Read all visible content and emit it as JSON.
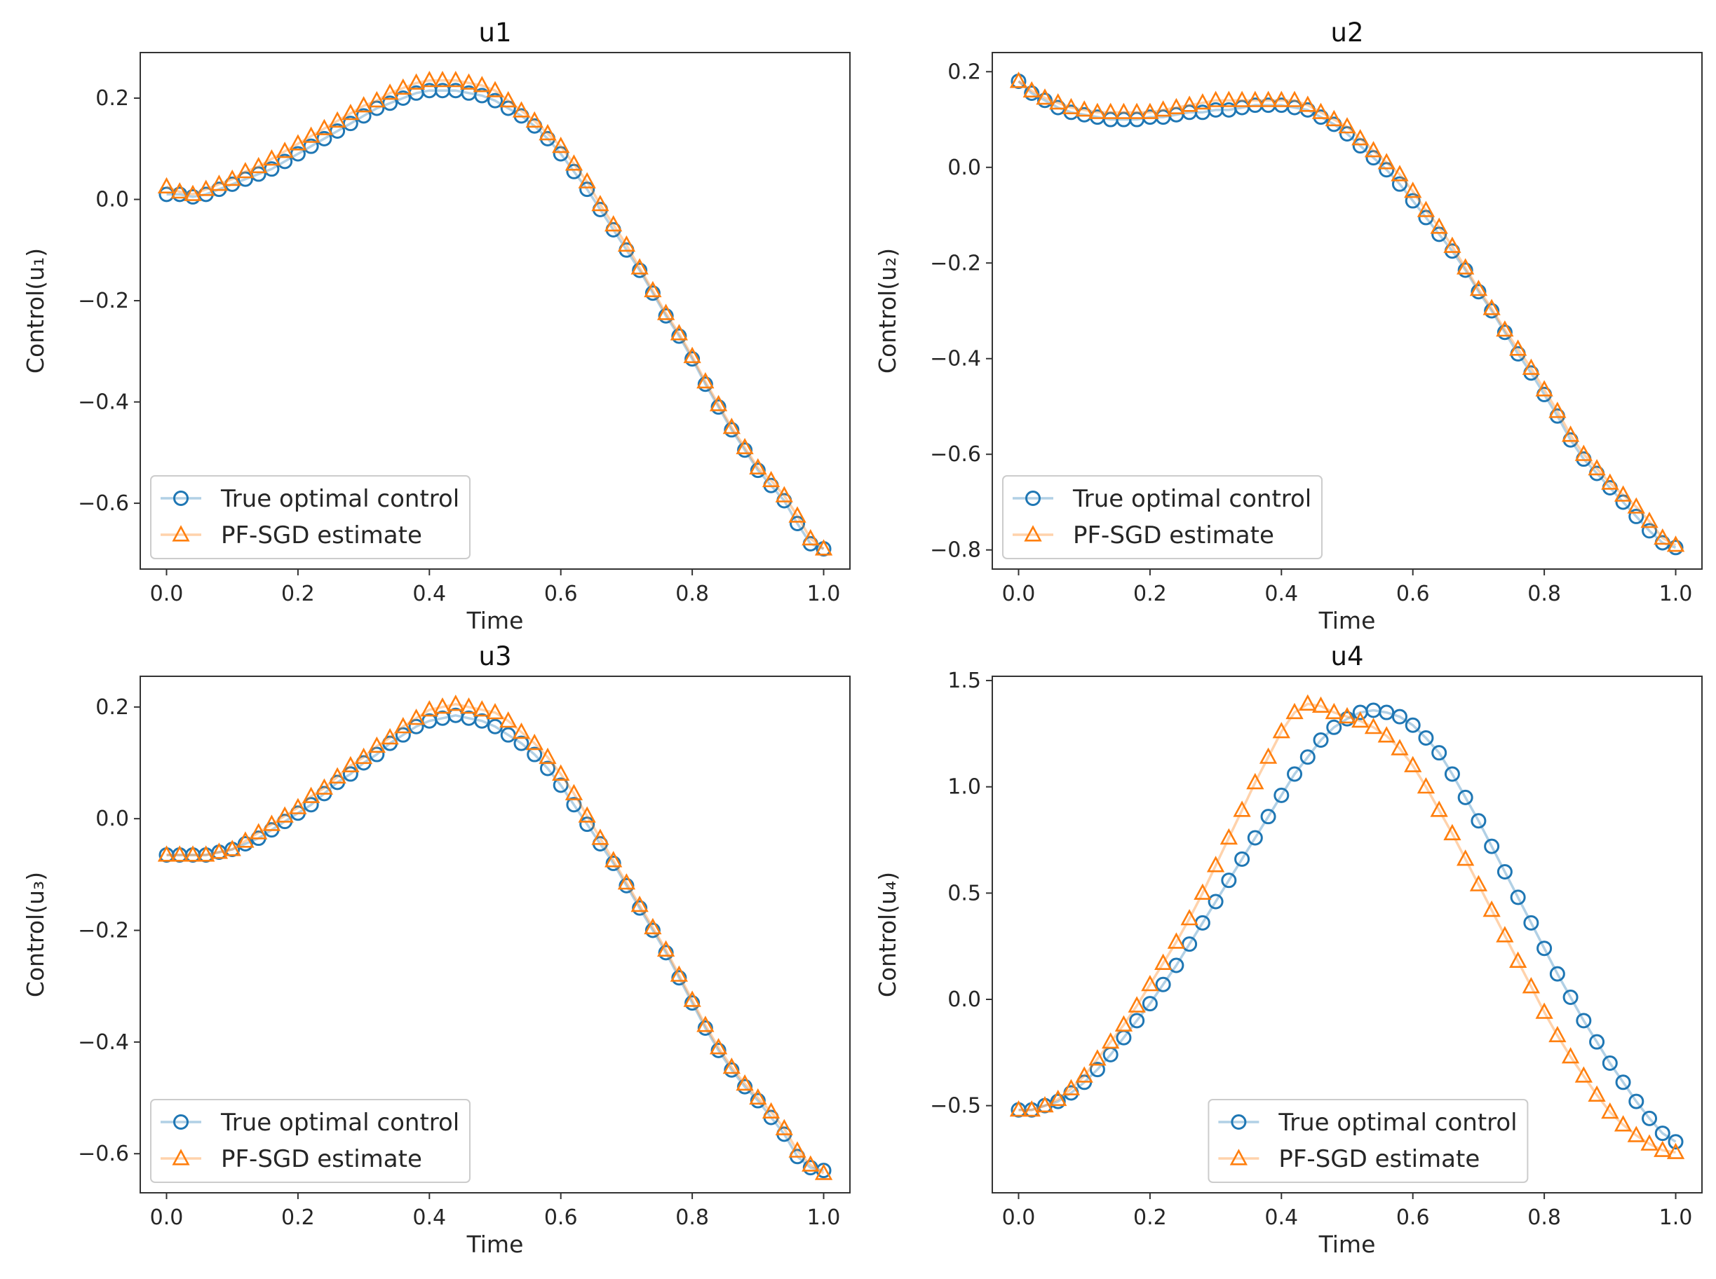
{
  "figure": {
    "background": "#ffffff"
  },
  "chart_data": [
    {
      "type": "line",
      "title": "u1",
      "xlabel": "Time",
      "ylabel": "Control(u₁)",
      "xlim": [
        -0.04,
        1.04
      ],
      "ylim": [
        -0.73,
        0.29
      ],
      "xticks": [
        0.0,
        0.2,
        0.4,
        0.6,
        0.8,
        1.0
      ],
      "xtick_labels": [
        "0.0",
        "0.2",
        "0.4",
        "0.6",
        "0.8",
        "1.0"
      ],
      "yticks": [
        -0.6,
        -0.4,
        -0.2,
        0.0,
        0.2
      ],
      "ytick_labels": [
        "−0.6",
        "−0.4",
        "−0.2",
        "0.0",
        "0.2"
      ],
      "legend_position": "lower-left",
      "x": [
        0.0,
        0.02,
        0.04,
        0.06,
        0.08,
        0.1,
        0.12,
        0.14,
        0.16,
        0.18,
        0.2,
        0.22,
        0.24,
        0.26,
        0.28,
        0.3,
        0.32,
        0.34,
        0.36,
        0.38,
        0.4,
        0.42,
        0.44,
        0.46,
        0.48,
        0.5,
        0.52,
        0.54,
        0.56,
        0.58,
        0.6,
        0.62,
        0.64,
        0.66,
        0.68,
        0.7,
        0.72,
        0.74,
        0.76,
        0.78,
        0.8,
        0.82,
        0.84,
        0.86,
        0.88,
        0.9,
        0.92,
        0.94,
        0.96,
        0.98,
        1.0
      ],
      "series": [
        {
          "name": "True optimal control",
          "marker": "circle",
          "color": "#1f77b4",
          "values": [
            0.01,
            0.01,
            0.005,
            0.01,
            0.02,
            0.03,
            0.04,
            0.05,
            0.06,
            0.075,
            0.09,
            0.105,
            0.12,
            0.135,
            0.15,
            0.165,
            0.18,
            0.19,
            0.2,
            0.21,
            0.215,
            0.215,
            0.215,
            0.21,
            0.205,
            0.195,
            0.18,
            0.165,
            0.145,
            0.12,
            0.09,
            0.055,
            0.02,
            -0.02,
            -0.06,
            -0.1,
            -0.14,
            -0.185,
            -0.23,
            -0.27,
            -0.315,
            -0.365,
            -0.41,
            -0.455,
            -0.495,
            -0.535,
            -0.565,
            -0.595,
            -0.64,
            -0.68,
            -0.69
          ]
        },
        {
          "name": "PF-SGD estimate",
          "marker": "triangle",
          "color": "#ff7f0e",
          "values": [
            0.025,
            0.015,
            0.01,
            0.02,
            0.03,
            0.04,
            0.055,
            0.065,
            0.08,
            0.095,
            0.11,
            0.125,
            0.14,
            0.155,
            0.17,
            0.185,
            0.195,
            0.21,
            0.22,
            0.23,
            0.235,
            0.235,
            0.235,
            0.23,
            0.225,
            0.215,
            0.195,
            0.175,
            0.155,
            0.13,
            0.105,
            0.07,
            0.035,
            -0.01,
            -0.05,
            -0.09,
            -0.135,
            -0.18,
            -0.225,
            -0.265,
            -0.31,
            -0.36,
            -0.405,
            -0.45,
            -0.49,
            -0.53,
            -0.555,
            -0.585,
            -0.625,
            -0.67,
            -0.69
          ]
        }
      ]
    },
    {
      "type": "line",
      "title": "u2",
      "xlabel": "Time",
      "ylabel": "Control(u₂)",
      "xlim": [
        -0.04,
        1.04
      ],
      "ylim": [
        -0.84,
        0.24
      ],
      "xticks": [
        0.0,
        0.2,
        0.4,
        0.6,
        0.8,
        1.0
      ],
      "xtick_labels": [
        "0.0",
        "0.2",
        "0.4",
        "0.6",
        "0.8",
        "1.0"
      ],
      "yticks": [
        -0.8,
        -0.6,
        -0.4,
        -0.2,
        0.0,
        0.2
      ],
      "ytick_labels": [
        "−0.8",
        "−0.6",
        "−0.4",
        "−0.2",
        "0.0",
        "0.2"
      ],
      "legend_position": "lower-left",
      "x": [
        0.0,
        0.02,
        0.04,
        0.06,
        0.08,
        0.1,
        0.12,
        0.14,
        0.16,
        0.18,
        0.2,
        0.22,
        0.24,
        0.26,
        0.28,
        0.3,
        0.32,
        0.34,
        0.36,
        0.38,
        0.4,
        0.42,
        0.44,
        0.46,
        0.48,
        0.5,
        0.52,
        0.54,
        0.56,
        0.58,
        0.6,
        0.62,
        0.64,
        0.66,
        0.68,
        0.7,
        0.72,
        0.74,
        0.76,
        0.78,
        0.8,
        0.82,
        0.84,
        0.86,
        0.88,
        0.9,
        0.92,
        0.94,
        0.96,
        0.98,
        1.0
      ],
      "series": [
        {
          "name": "True optimal control",
          "marker": "circle",
          "color": "#1f77b4",
          "values": [
            0.18,
            0.155,
            0.14,
            0.125,
            0.115,
            0.11,
            0.105,
            0.1,
            0.1,
            0.1,
            0.105,
            0.105,
            0.11,
            0.115,
            0.115,
            0.12,
            0.12,
            0.125,
            0.13,
            0.13,
            0.13,
            0.125,
            0.12,
            0.105,
            0.09,
            0.07,
            0.045,
            0.02,
            -0.005,
            -0.035,
            -0.07,
            -0.105,
            -0.14,
            -0.175,
            -0.215,
            -0.26,
            -0.3,
            -0.345,
            -0.39,
            -0.43,
            -0.475,
            -0.52,
            -0.57,
            -0.61,
            -0.64,
            -0.67,
            -0.7,
            -0.73,
            -0.76,
            -0.785,
            -0.795
          ]
        },
        {
          "name": "PF-SGD estimate",
          "marker": "triangle",
          "color": "#ff7f0e",
          "values": [
            0.18,
            0.16,
            0.145,
            0.135,
            0.125,
            0.12,
            0.115,
            0.115,
            0.115,
            0.115,
            0.115,
            0.12,
            0.125,
            0.13,
            0.135,
            0.14,
            0.14,
            0.14,
            0.14,
            0.14,
            0.14,
            0.14,
            0.13,
            0.115,
            0.1,
            0.085,
            0.06,
            0.035,
            0.01,
            -0.015,
            -0.05,
            -0.09,
            -0.125,
            -0.165,
            -0.21,
            -0.255,
            -0.295,
            -0.34,
            -0.38,
            -0.42,
            -0.465,
            -0.51,
            -0.56,
            -0.6,
            -0.63,
            -0.66,
            -0.685,
            -0.71,
            -0.74,
            -0.775,
            -0.79
          ]
        }
      ]
    },
    {
      "type": "line",
      "title": "u3",
      "xlabel": "Time",
      "ylabel": "Control(u₃)",
      "xlim": [
        -0.04,
        1.04
      ],
      "ylim": [
        -0.67,
        0.255
      ],
      "xticks": [
        0.0,
        0.2,
        0.4,
        0.6,
        0.8,
        1.0
      ],
      "xtick_labels": [
        "0.0",
        "0.2",
        "0.4",
        "0.6",
        "0.8",
        "1.0"
      ],
      "yticks": [
        -0.6,
        -0.4,
        -0.2,
        0.0,
        0.2
      ],
      "ytick_labels": [
        "−0.6",
        "−0.4",
        "−0.2",
        "0.0",
        "0.2"
      ],
      "legend_position": "lower-left",
      "x": [
        0.0,
        0.02,
        0.04,
        0.06,
        0.08,
        0.1,
        0.12,
        0.14,
        0.16,
        0.18,
        0.2,
        0.22,
        0.24,
        0.26,
        0.28,
        0.3,
        0.32,
        0.34,
        0.36,
        0.38,
        0.4,
        0.42,
        0.44,
        0.46,
        0.48,
        0.5,
        0.52,
        0.54,
        0.56,
        0.58,
        0.6,
        0.62,
        0.64,
        0.66,
        0.68,
        0.7,
        0.72,
        0.74,
        0.76,
        0.78,
        0.8,
        0.82,
        0.84,
        0.86,
        0.88,
        0.9,
        0.92,
        0.94,
        0.96,
        0.98,
        1.0
      ],
      "series": [
        {
          "name": "True optimal control",
          "marker": "circle",
          "color": "#1f77b4",
          "values": [
            -0.065,
            -0.065,
            -0.065,
            -0.065,
            -0.06,
            -0.055,
            -0.045,
            -0.035,
            -0.02,
            -0.005,
            0.01,
            0.025,
            0.045,
            0.065,
            0.08,
            0.1,
            0.115,
            0.135,
            0.15,
            0.165,
            0.175,
            0.18,
            0.185,
            0.18,
            0.175,
            0.165,
            0.15,
            0.135,
            0.115,
            0.09,
            0.06,
            0.025,
            -0.01,
            -0.045,
            -0.08,
            -0.12,
            -0.16,
            -0.2,
            -0.24,
            -0.285,
            -0.33,
            -0.375,
            -0.415,
            -0.45,
            -0.48,
            -0.505,
            -0.535,
            -0.565,
            -0.605,
            -0.625,
            -0.63
          ]
        },
        {
          "name": "PF-SGD estimate",
          "marker": "triangle",
          "color": "#ff7f0e",
          "values": [
            -0.065,
            -0.065,
            -0.065,
            -0.065,
            -0.06,
            -0.055,
            -0.04,
            -0.025,
            -0.01,
            0.005,
            0.02,
            0.04,
            0.055,
            0.075,
            0.095,
            0.11,
            0.13,
            0.145,
            0.165,
            0.18,
            0.195,
            0.2,
            0.205,
            0.2,
            0.195,
            0.19,
            0.175,
            0.155,
            0.135,
            0.11,
            0.08,
            0.045,
            0.005,
            -0.035,
            -0.075,
            -0.115,
            -0.155,
            -0.195,
            -0.235,
            -0.28,
            -0.325,
            -0.37,
            -0.41,
            -0.445,
            -0.475,
            -0.5,
            -0.525,
            -0.555,
            -0.595,
            -0.62,
            -0.635
          ]
        }
      ]
    },
    {
      "type": "line",
      "title": "u4",
      "xlabel": "Time",
      "ylabel": "Control(u₄)",
      "xlim": [
        -0.04,
        1.04
      ],
      "ylim": [
        -0.91,
        1.52
      ],
      "xticks": [
        0.0,
        0.2,
        0.4,
        0.6,
        0.8,
        1.0
      ],
      "xtick_labels": [
        "0.0",
        "0.2",
        "0.4",
        "0.6",
        "0.8",
        "1.0"
      ],
      "yticks": [
        -0.5,
        0.0,
        0.5,
        1.0,
        1.5
      ],
      "ytick_labels": [
        "−0.5",
        "0.0",
        "0.5",
        "1.0",
        "1.5"
      ],
      "legend_position": "lower-center",
      "x": [
        0.0,
        0.02,
        0.04,
        0.06,
        0.08,
        0.1,
        0.12,
        0.14,
        0.16,
        0.18,
        0.2,
        0.22,
        0.24,
        0.26,
        0.28,
        0.3,
        0.32,
        0.34,
        0.36,
        0.38,
        0.4,
        0.42,
        0.44,
        0.46,
        0.48,
        0.5,
        0.52,
        0.54,
        0.56,
        0.58,
        0.6,
        0.62,
        0.64,
        0.66,
        0.68,
        0.7,
        0.72,
        0.74,
        0.76,
        0.78,
        0.8,
        0.82,
        0.84,
        0.86,
        0.88,
        0.9,
        0.92,
        0.94,
        0.96,
        0.98,
        1.0
      ],
      "series": [
        {
          "name": "True optimal control",
          "marker": "circle",
          "color": "#1f77b4",
          "values": [
            -0.52,
            -0.52,
            -0.5,
            -0.48,
            -0.44,
            -0.39,
            -0.33,
            -0.26,
            -0.18,
            -0.1,
            -0.02,
            0.07,
            0.16,
            0.26,
            0.36,
            0.46,
            0.56,
            0.66,
            0.76,
            0.86,
            0.96,
            1.06,
            1.14,
            1.22,
            1.28,
            1.32,
            1.35,
            1.36,
            1.35,
            1.33,
            1.29,
            1.23,
            1.16,
            1.06,
            0.95,
            0.84,
            0.72,
            0.6,
            0.48,
            0.36,
            0.24,
            0.12,
            0.01,
            -0.1,
            -0.2,
            -0.3,
            -0.39,
            -0.48,
            -0.56,
            -0.63,
            -0.67
          ]
        },
        {
          "name": "PF-SGD estimate",
          "marker": "triangle",
          "color": "#ff7f0e",
          "values": [
            -0.52,
            -0.52,
            -0.5,
            -0.47,
            -0.42,
            -0.36,
            -0.28,
            -0.2,
            -0.12,
            -0.03,
            0.07,
            0.17,
            0.27,
            0.38,
            0.5,
            0.63,
            0.76,
            0.89,
            1.02,
            1.14,
            1.26,
            1.35,
            1.39,
            1.38,
            1.35,
            1.33,
            1.31,
            1.28,
            1.24,
            1.18,
            1.1,
            1.0,
            0.89,
            0.78,
            0.66,
            0.54,
            0.42,
            0.3,
            0.18,
            0.06,
            -0.06,
            -0.17,
            -0.27,
            -0.36,
            -0.45,
            -0.53,
            -0.59,
            -0.64,
            -0.68,
            -0.71,
            -0.72
          ]
        }
      ]
    }
  ]
}
